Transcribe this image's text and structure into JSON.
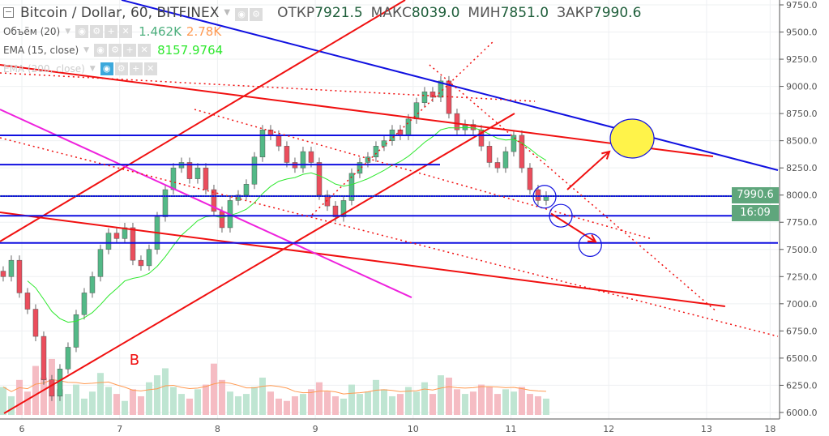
{
  "header": {
    "symbol": "Bitcoin / Dollar, 60, BITFINEX",
    "ohlc": [
      {
        "label": "ОТКР",
        "value": "7921.5"
      },
      {
        "label": "МАКС",
        "value": "8039.0"
      },
      {
        "label": "МИН",
        "value": "7851.0"
      },
      {
        "label": "ЗАКР",
        "value": "7990.6"
      }
    ]
  },
  "indicators": [
    {
      "name": "Объём (20)",
      "values": [
        "1.462K",
        "2.78K"
      ],
      "colors": [
        "#4caf7d",
        "#ff9a52"
      ]
    },
    {
      "name": "EMA (15, close)",
      "values": [
        "8157.9764"
      ],
      "colors": [
        "#2ee82e"
      ]
    },
    {
      "name": "EMA (200, close)",
      "values": [],
      "colors": []
    }
  ],
  "price_tag": {
    "value": "7990.6",
    "countdown": "16:09",
    "color": "#5fa67c"
  },
  "chart_data": {
    "type": "candlestick",
    "ylim": [
      6000,
      9750
    ],
    "y_ticks": [
      "9750.0",
      "9500.0",
      "9250.0",
      "9000.0",
      "8750.0",
      "8500.0",
      "8250.0",
      "8000.0",
      "7750.0",
      "7500.0",
      "7250.0",
      "7000.0",
      "6750.0",
      "6500.0",
      "6250.0",
      "6000.0"
    ],
    "x_ticks": [
      {
        "day": 6,
        "label": "6"
      },
      {
        "day": 7,
        "label": "7"
      },
      {
        "day": 8,
        "label": "8"
      },
      {
        "day": 9,
        "label": "9"
      },
      {
        "day": 10,
        "label": "10"
      },
      {
        "day": 11,
        "label": "11"
      },
      {
        "day": 12,
        "label": "12"
      },
      {
        "day": 13,
        "label": "13"
      },
      {
        "day": 13.65,
        "label": "18"
      }
    ],
    "closes": [
      7250,
      7400,
      7100,
      6950,
      6700,
      6300,
      6150,
      6400,
      6600,
      6900,
      7100,
      7250,
      7500,
      7650,
      7600,
      7700,
      7400,
      7350,
      7500,
      7800,
      8050,
      8250,
      8300,
      8150,
      8250,
      8050,
      7850,
      7700,
      7950,
      8000,
      8100,
      8350,
      8600,
      8550,
      8450,
      8300,
      8250,
      8400,
      8300,
      8000,
      7900,
      7800,
      7950,
      8200,
      8300,
      8350,
      8450,
      8500,
      8600,
      8550,
      8700,
      8850,
      8950,
      8900,
      9050,
      8750,
      8600,
      8650,
      8600,
      8450,
      8300,
      8250,
      8400,
      8550,
      8250,
      8050,
      7950,
      7990
    ],
    "volumes_k": [
      1.2,
      0.8,
      1.5,
      1.0,
      2.1,
      1.6,
      2.4,
      1.1,
      0.9,
      1.3,
      0.7,
      1.0,
      1.8,
      1.2,
      0.9,
      0.6,
      1.1,
      0.8,
      1.4,
      1.7,
      2.0,
      1.2,
      0.9,
      0.7,
      1.1,
      1.3,
      2.2,
      1.5,
      1.0,
      0.8,
      0.9,
      1.2,
      1.6,
      1.0,
      0.7,
      0.6,
      0.8,
      0.9,
      1.1,
      1.4,
      1.0,
      0.8,
      0.7,
      1.3,
      0.9,
      1.0,
      1.5,
      1.1,
      0.8,
      0.9,
      1.2,
      1.0,
      1.4,
      0.9,
      1.7,
      1.6,
      1.1,
      0.9,
      1.0,
      1.3,
      1.2,
      0.9,
      1.1,
      1.0,
      1.2,
      0.9,
      0.8,
      0.7
    ],
    "ema_period": 15,
    "colors": {
      "up": "#53b987",
      "down": "#eb4d5c",
      "ema": "#2ee82e",
      "vol_ma": "#ff9a52"
    },
    "drawings": {
      "lines": [
        {
          "p1": [
            7.019,
            9795
          ],
          "p2": [
            13.73,
            8229
          ],
          "color": "#1010e0",
          "style": "solid"
        },
        {
          "p1": [
            5.776,
            9198
          ],
          "p2": [
            13.067,
            8356
          ],
          "color": "#f01010",
          "style": "solid"
        },
        {
          "p1": [
            5.776,
            7573
          ],
          "p2": [
            9.919,
            9795
          ],
          "color": "#f01010",
          "style": "solid"
        },
        {
          "p1": [
            5.818,
            5992
          ],
          "p2": [
            11.037,
            8751
          ],
          "color": "#f01010",
          "style": "solid"
        },
        {
          "p1": [
            5.776,
            7841
          ],
          "p2": [
            13.19,
            6976
          ],
          "color": "#f01010",
          "style": "solid"
        },
        {
          "p1": [
            5.776,
            8788
          ],
          "p2": [
            9.985,
            7058
          ],
          "color": "#ee22dd",
          "style": "solid"
        },
        {
          "p1": [
            5.776,
            8550
          ],
          "p2": [
            10.996,
            8550
          ],
          "color": "#1010e0",
          "style": "solid"
        },
        {
          "p1": [
            5.776,
            8280
          ],
          "p2": [
            10.275,
            8280
          ],
          "color": "#1010e0",
          "style": "solid"
        },
        {
          "p1": [
            5.776,
            7990
          ],
          "p2": [
            13.73,
            7990
          ],
          "color": "#1010e0",
          "style": "solid"
        },
        {
          "p1": [
            5.776,
            7810
          ],
          "p2": [
            13.73,
            7810
          ],
          "color": "#1010e0",
          "style": "solid"
        },
        {
          "p1": [
            5.776,
            7560
          ],
          "p2": [
            13.73,
            7560
          ],
          "color": "#1010e0",
          "style": "solid"
        },
        {
          "p1": [
            5.776,
            9124
          ],
          "p2": [
            11.245,
            8863
          ],
          "color": "#f01010",
          "style": "dotted"
        },
        {
          "p1": [
            7.765,
            8788
          ],
          "p2": [
            12.446,
            7595
          ],
          "color": "#f01010",
          "style": "dotted"
        },
        {
          "p1": [
            5.776,
            8527
          ],
          "p2": [
            13.73,
            6700
          ],
          "color": "#f01010",
          "style": "dotted"
        },
        {
          "p1": [
            8.966,
            7819
          ],
          "p2": [
            10.83,
            9422
          ],
          "color": "#f01010",
          "style": "dotted"
        },
        {
          "p1": [
            10.167,
            9198
          ],
          "p2": [
            13.108,
            6924
          ],
          "color": "#f01010",
          "style": "dotted"
        }
      ],
      "arrows": [
        {
          "p1": [
            11.576,
            8050
          ],
          "p2": [
            12.007,
            8400
          ],
          "color": "#f01010"
        },
        {
          "p1": [
            11.41,
            7830
          ],
          "p2": [
            11.866,
            7570
          ],
          "color": "#f01010"
        }
      ],
      "circles": [
        {
          "c": [
            12.239,
            8520
          ],
          "fill": "#fff34a",
          "stroke": "#1010e0",
          "size": "large"
        },
        {
          "c": [
            11.344,
            7985
          ],
          "fill": "none",
          "stroke": "#1010e0",
          "size": "small"
        },
        {
          "c": [
            11.51,
            7810
          ],
          "fill": "none",
          "stroke": "#1010e0",
          "size": "small"
        },
        {
          "c": [
            11.81,
            7540
          ],
          "fill": "none",
          "stroke": "#1010e0",
          "size": "small"
        }
      ],
      "texts": [
        {
          "p": [
            7.1,
            6440
          ],
          "text": "B",
          "color": "#f01010"
        }
      ]
    }
  }
}
